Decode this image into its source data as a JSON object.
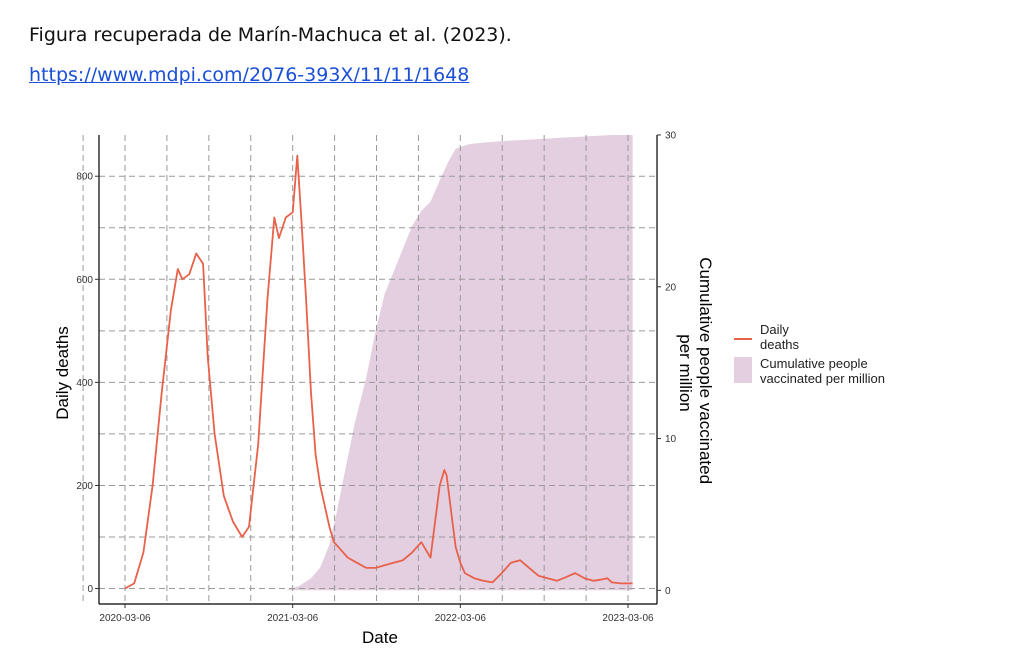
{
  "caption": "Figura recuperada de Marín-Machuca et al. (2023).",
  "link": "https://www.mdpi.com/2076-393X/11/11/1648",
  "chart_data": {
    "type": "line",
    "xlabel": "Date",
    "ylabel_left": "Daily deaths",
    "ylabel_right": "Cumulative people vaccinated per million",
    "x_ticks": [
      "2020-03-06",
      "2021-03-06",
      "2022-03-06",
      "2023-03-06"
    ],
    "y_left_ticks": [
      "0",
      "200",
      "400",
      "600",
      "800"
    ],
    "y_right_ticks": [
      "0",
      "10",
      "20",
      "30"
    ],
    "ylim_left": [
      -30,
      880
    ],
    "ylim_right": [
      -0.9,
      30
    ],
    "grid": true,
    "legend": {
      "position": "right",
      "line_label_1": "Daily",
      "line_label_2": "deaths",
      "area_label_1": "Cumulative people",
      "area_label_2": "vaccinated per million"
    },
    "colors": {
      "line": "#e8614a",
      "area": "#e3cfe0"
    },
    "series": [
      {
        "name": "Daily deaths",
        "kind": "line",
        "x": [
          "2020-03-06",
          "2020-03-26",
          "2020-04-15",
          "2020-05-05",
          "2020-05-25",
          "2020-06-14",
          "2020-06-29",
          "2020-07-09",
          "2020-07-24",
          "2020-08-08",
          "2020-08-23",
          "2020-09-02",
          "2020-09-17",
          "2020-10-07",
          "2020-10-27",
          "2020-11-16",
          "2020-12-01",
          "2020-12-21",
          "2021-01-10",
          "2021-01-25",
          "2021-02-04",
          "2021-02-19",
          "2021-03-06",
          "2021-03-16",
          "2021-03-26",
          "2021-04-05",
          "2021-04-15",
          "2021-04-25",
          "2021-05-05",
          "2021-05-15",
          "2021-05-25",
          "2021-06-04",
          "2021-06-14",
          "2021-07-04",
          "2021-07-24",
          "2021-08-13",
          "2021-09-02",
          "2021-09-22",
          "2021-10-12",
          "2021-11-01",
          "2021-11-21",
          "2021-12-11",
          "2021-12-31",
          "2022-01-20",
          "2022-01-30",
          "2022-02-04",
          "2022-02-14",
          "2022-02-24",
          "2022-03-06",
          "2022-03-16",
          "2022-04-05",
          "2022-04-25",
          "2022-05-15",
          "2022-06-04",
          "2022-06-24",
          "2022-07-14",
          "2022-08-03",
          "2022-08-23",
          "2022-09-12",
          "2022-10-02",
          "2022-10-22",
          "2022-11-11",
          "2022-12-01",
          "2022-12-21",
          "2023-01-10",
          "2023-01-20",
          "2023-01-30",
          "2023-02-19",
          "2023-03-06",
          "2023-03-16"
        ],
        "y": [
          0,
          10,
          70,
          200,
          380,
          540,
          620,
          600,
          610,
          650,
          630,
          450,
          300,
          180,
          130,
          100,
          120,
          280,
          560,
          720,
          680,
          720,
          730,
          840,
          700,
          550,
          380,
          260,
          200,
          160,
          120,
          90,
          80,
          60,
          50,
          40,
          40,
          45,
          50,
          55,
          70,
          90,
          60,
          200,
          230,
          220,
          150,
          80,
          50,
          30,
          20,
          15,
          12,
          30,
          50,
          55,
          40,
          25,
          20,
          15,
          22,
          30,
          20,
          15,
          18,
          20,
          12,
          10,
          10,
          10
        ]
      },
      {
        "name": "Cumulative people vaccinated per million",
        "kind": "area",
        "x": [
          "2021-02-19",
          "2021-03-21",
          "2021-04-15",
          "2021-05-05",
          "2021-05-25",
          "2021-06-09",
          "2021-06-29",
          "2021-07-19",
          "2021-08-13",
          "2021-09-02",
          "2021-09-22",
          "2021-10-12",
          "2021-11-01",
          "2021-11-21",
          "2021-12-11",
          "2021-12-31",
          "2022-01-20",
          "2022-02-09",
          "2022-02-24",
          "2022-03-06",
          "2022-03-26",
          "2022-04-25",
          "2022-06-04",
          "2022-08-03",
          "2022-10-02",
          "2022-12-01",
          "2023-01-30",
          "2023-03-16"
        ],
        "y": [
          0,
          0.3,
          0.8,
          1.5,
          3,
          5,
          8,
          11,
          14,
          17,
          19.5,
          21,
          22.5,
          24,
          25,
          25.6,
          27,
          28.3,
          29.1,
          29.2,
          29.4,
          29.5,
          29.6,
          29.7,
          29.8,
          29.9,
          30,
          30
        ]
      }
    ]
  }
}
